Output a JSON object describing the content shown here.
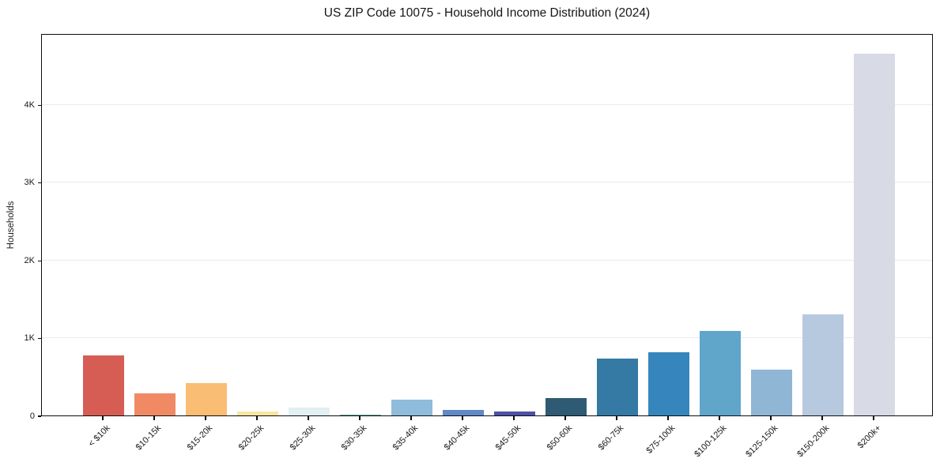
{
  "chart_data": {
    "type": "bar",
    "title": "US ZIP Code 10075 - Household Income Distribution (2024)",
    "xlabel": "",
    "ylabel": "Households",
    "categories": [
      "< $10k",
      "$10-15k",
      "$15-20k",
      "$20-25k",
      "$25-30k",
      "$30-35k",
      "$35-40k",
      "$40-45k",
      "$45-50k",
      "$50-60k",
      "$60-75k",
      "$75-100k",
      "$100-125k",
      "$125-150k",
      "$150-200k",
      "$200k+"
    ],
    "values": [
      770,
      280,
      420,
      50,
      100,
      10,
      205,
      75,
      55,
      220,
      730,
      815,
      1090,
      590,
      1305,
      4660
    ],
    "bar_colors": [
      "#d65d54",
      "#f08a65",
      "#fabd74",
      "#f7e5a2",
      "#e2eff3",
      "#6aa5a0",
      "#8fbcdb",
      "#6289c7",
      "#4d52a4",
      "#2f5a73",
      "#357aa5",
      "#3685bd",
      "#60a6cb",
      "#90b6d6",
      "#b7c9df",
      "#d8dae6"
    ],
    "yticks": [
      {
        "value": 0,
        "label": "0"
      },
      {
        "value": 1000,
        "label": "1K"
      },
      {
        "value": 2000,
        "label": "2K"
      },
      {
        "value": 3000,
        "label": "3K"
      },
      {
        "value": 4000,
        "label": "4K"
      }
    ],
    "ylim": [
      0,
      4920
    ],
    "grid": "horizontal",
    "legend": "none",
    "background": "#ffffff",
    "grid_color": "#ebebf1",
    "spine_color": "#0d0d0d",
    "x_tick_rotation": 45
  }
}
